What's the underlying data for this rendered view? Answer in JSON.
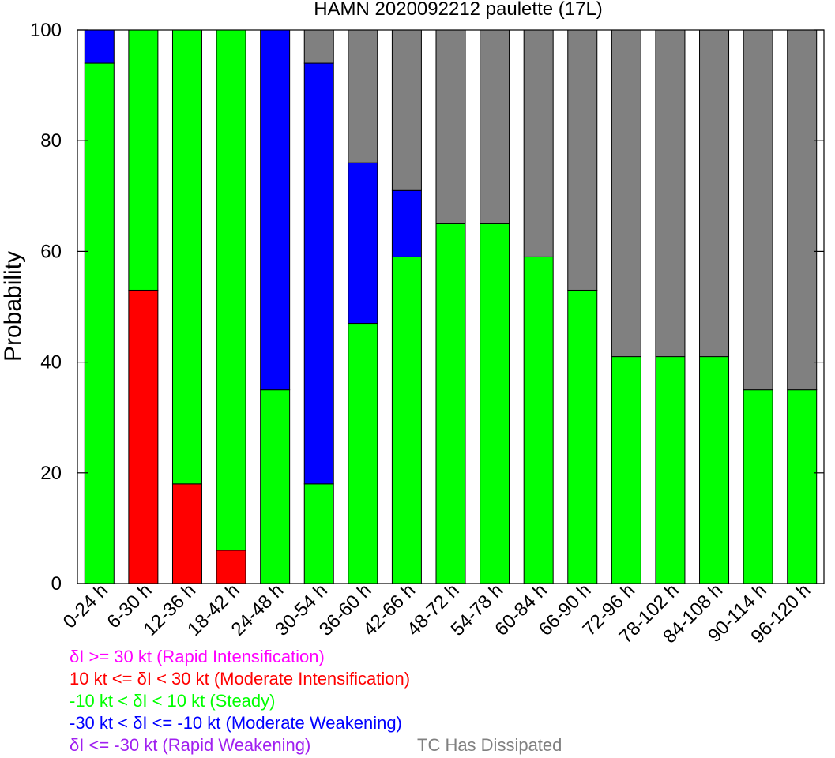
{
  "chart_data": {
    "type": "bar",
    "stacked": true,
    "title": "HAMN 2020092212 paulette (17L)",
    "xlabel": "",
    "ylabel": "Probability",
    "ylim": [
      0,
      100
    ],
    "yticks": [
      0,
      20,
      40,
      60,
      80,
      100
    ],
    "categories": [
      "0-24 h",
      "6-30 h",
      "12-36 h",
      "18-42 h",
      "24-48 h",
      "30-54 h",
      "36-60 h",
      "42-66 h",
      "48-72 h",
      "54-78 h",
      "60-84 h",
      "66-90 h",
      "72-96 h",
      "78-102 h",
      "84-108 h",
      "90-114 h",
      "96-120 h"
    ],
    "series": [
      {
        "name": "δI >= 30 kt (Rapid Intensification)",
        "color": "#ff00ff",
        "values": [
          0,
          0,
          0,
          0,
          0,
          0,
          0,
          0,
          0,
          0,
          0,
          0,
          0,
          0,
          0,
          0,
          0
        ]
      },
      {
        "name": "10 kt <= δI < 30 kt (Moderate Intensification)",
        "color": "#ff0000",
        "values": [
          0,
          53,
          18,
          6,
          0,
          0,
          0,
          0,
          0,
          0,
          0,
          0,
          0,
          0,
          0,
          0,
          0
        ]
      },
      {
        "name": "-10 kt < δI < 10 kt (Steady)",
        "color": "#00ff00",
        "values": [
          94,
          47,
          82,
          94,
          35,
          18,
          47,
          59,
          65,
          65,
          59,
          53,
          41,
          41,
          41,
          35,
          35
        ]
      },
      {
        "name": "-30 kt < δI <= -10 kt (Moderate Weakening)",
        "color": "#0000ff",
        "values": [
          6,
          0,
          0,
          0,
          65,
          76,
          29,
          12,
          0,
          0,
          0,
          0,
          0,
          0,
          0,
          0,
          0
        ]
      },
      {
        "name": "δI <= -30 kt (Rapid Weakening)",
        "color": "#a020f0",
        "values": [
          0,
          0,
          0,
          0,
          0,
          0,
          0,
          0,
          0,
          0,
          0,
          0,
          0,
          0,
          0,
          0,
          0
        ]
      },
      {
        "name": "TC Has Dissipated",
        "color": "#808080",
        "values": [
          0,
          0,
          0,
          0,
          0,
          6,
          24,
          29,
          35,
          35,
          41,
          47,
          59,
          59,
          59,
          65,
          65
        ]
      }
    ],
    "grid": false,
    "legend": "bottom"
  }
}
